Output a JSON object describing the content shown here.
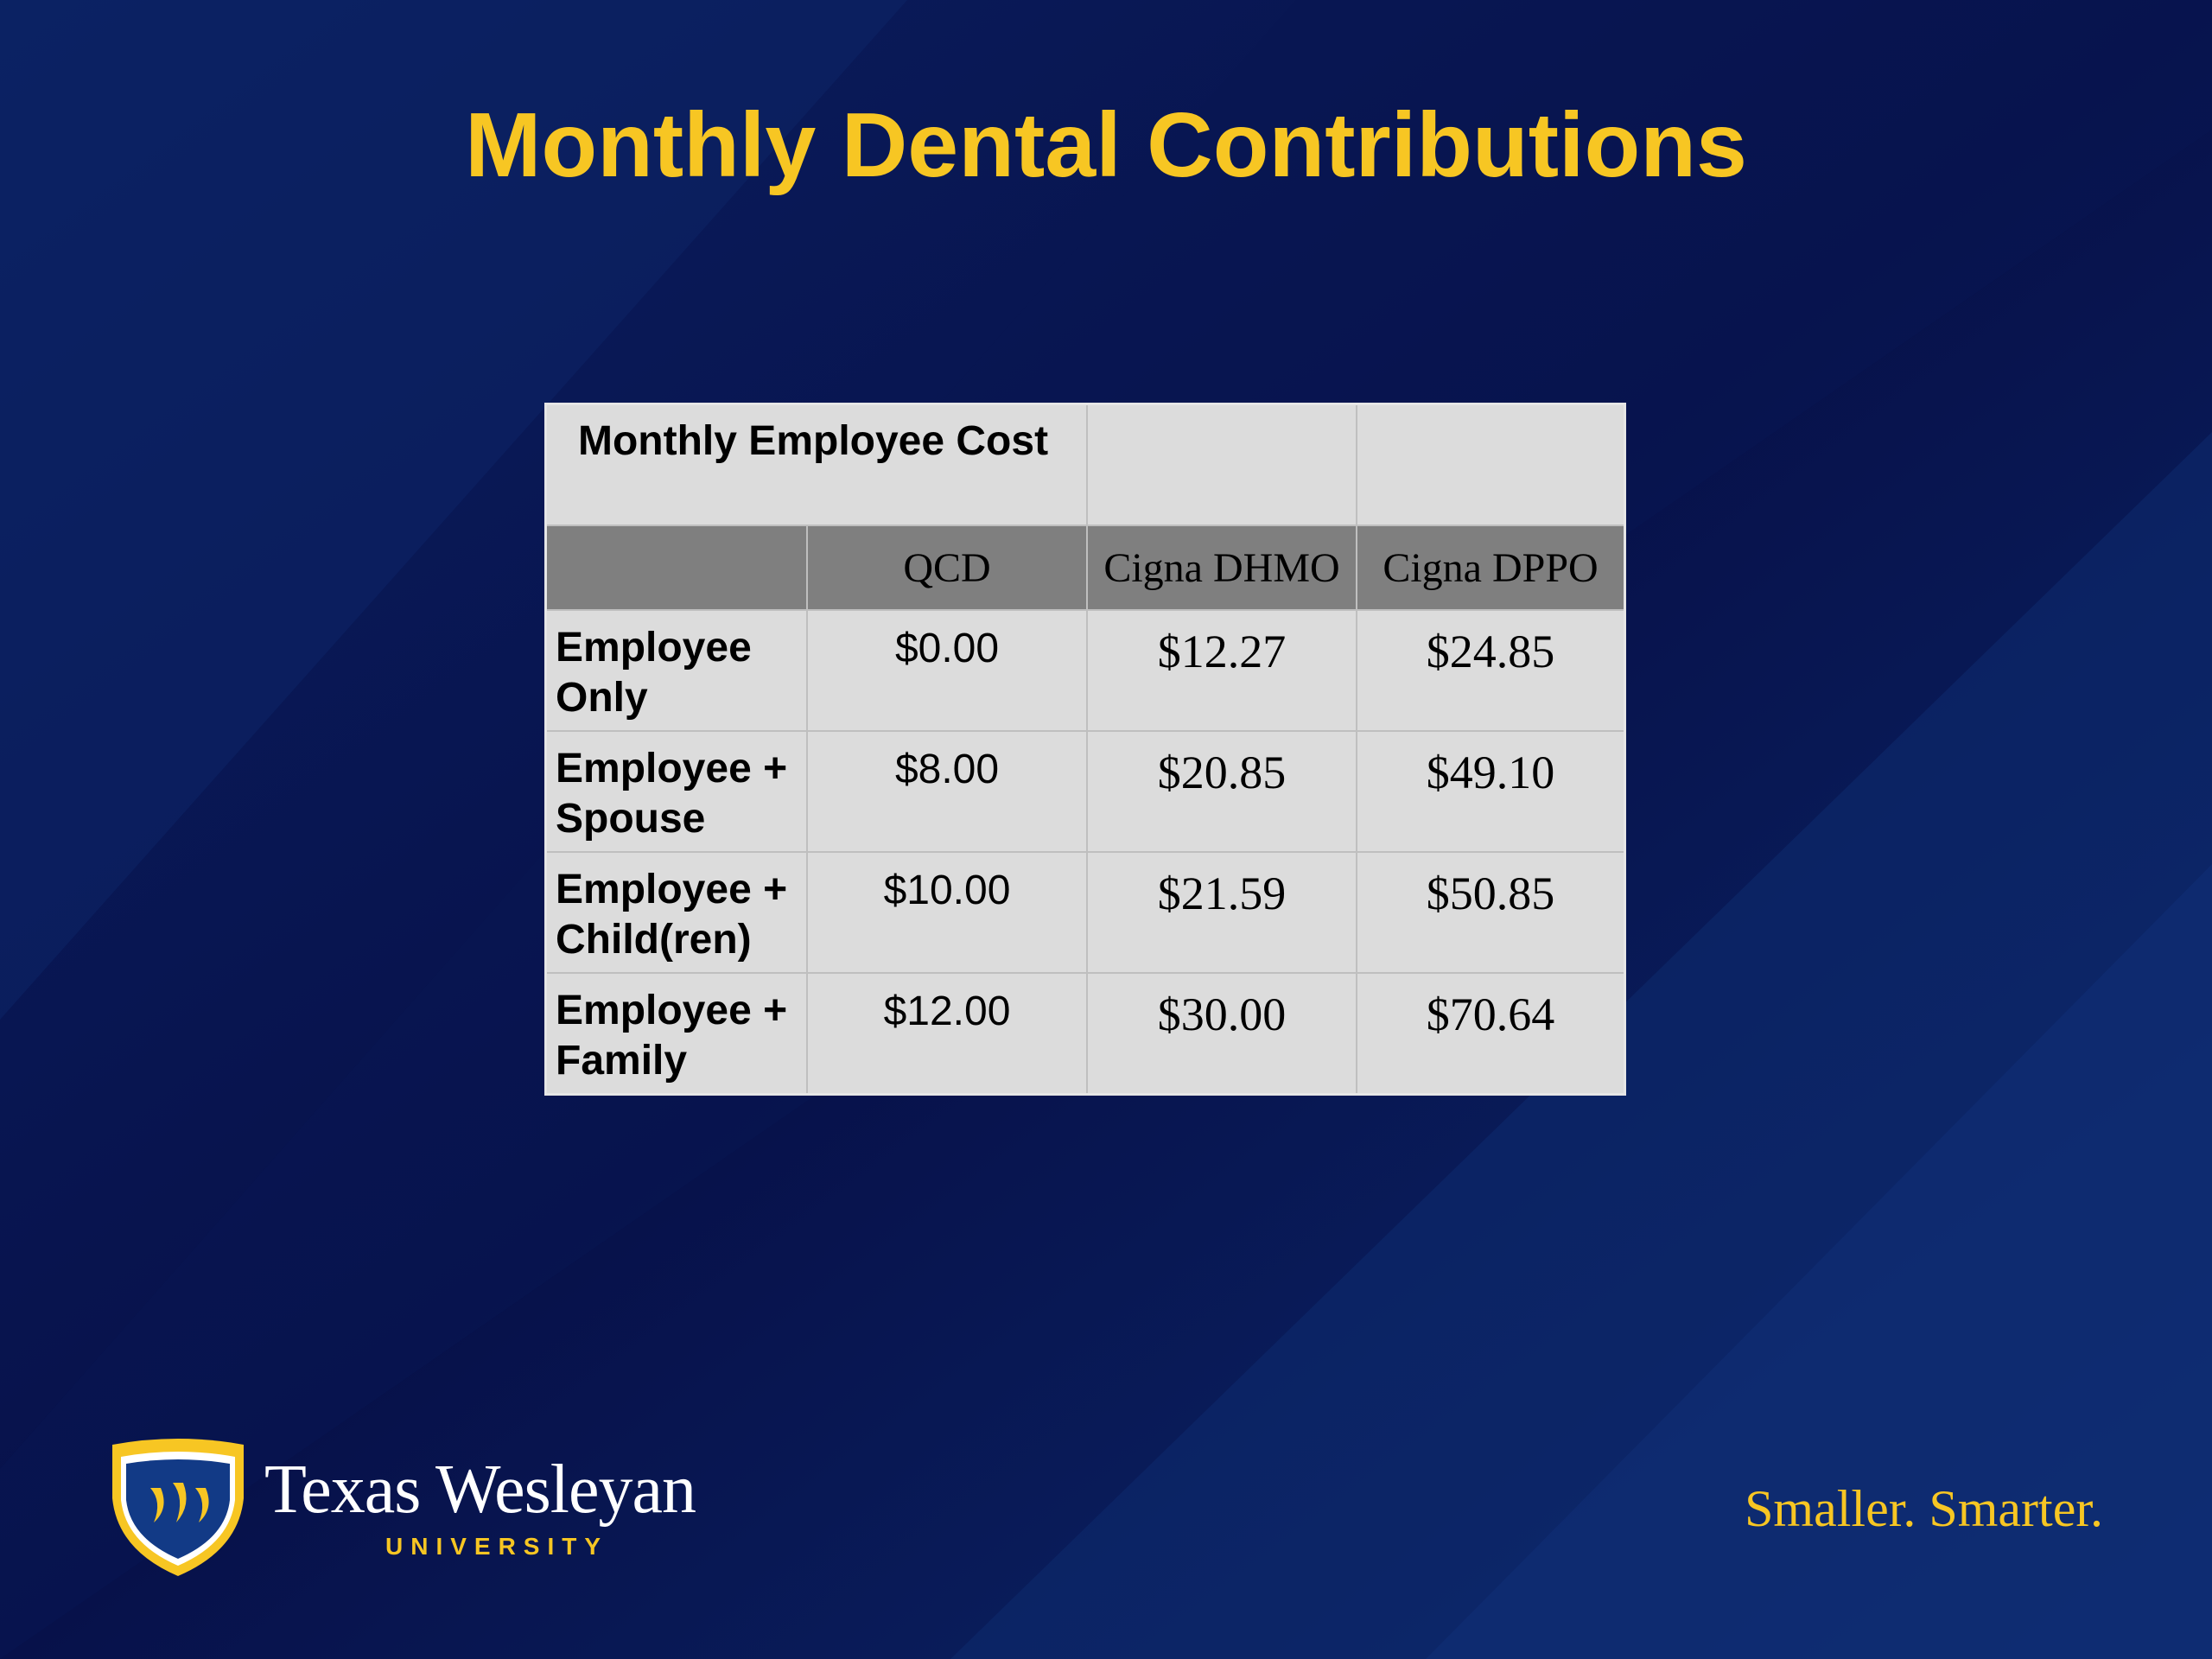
{
  "slide": {
    "title": "Monthly Dental Contributions"
  },
  "table": {
    "caption": "Monthly Employee Cost",
    "columns": [
      "",
      "QCD",
      "Cigna DHMO",
      "Cigna DPPO"
    ],
    "rows": [
      {
        "tier": "Employee Only",
        "qcd": "$0.00",
        "dhmo": "$12.27",
        "dppo": "$24.85"
      },
      {
        "tier": "Employee + Spouse",
        "qcd": "$8.00",
        "dhmo": "$20.85",
        "dppo": "$49.10"
      },
      {
        "tier": "Employee + Child(ren)",
        "qcd": "$10.00",
        "dhmo": "$21.59",
        "dppo": "$50.85"
      },
      {
        "tier": "Employee + Family",
        "qcd": "$12.00",
        "dhmo": "$30.00",
        "dppo": "$70.64"
      }
    ]
  },
  "footer": {
    "logo_name": "Texas Wesleyan",
    "logo_subtitle": "UNIVERSITY",
    "tagline": "Smaller. Smarter."
  },
  "colors": {
    "background": "#0a1a55",
    "title": "#f7c623",
    "table_body": "#dcdcdc",
    "table_header": "#7f7f7f"
  }
}
